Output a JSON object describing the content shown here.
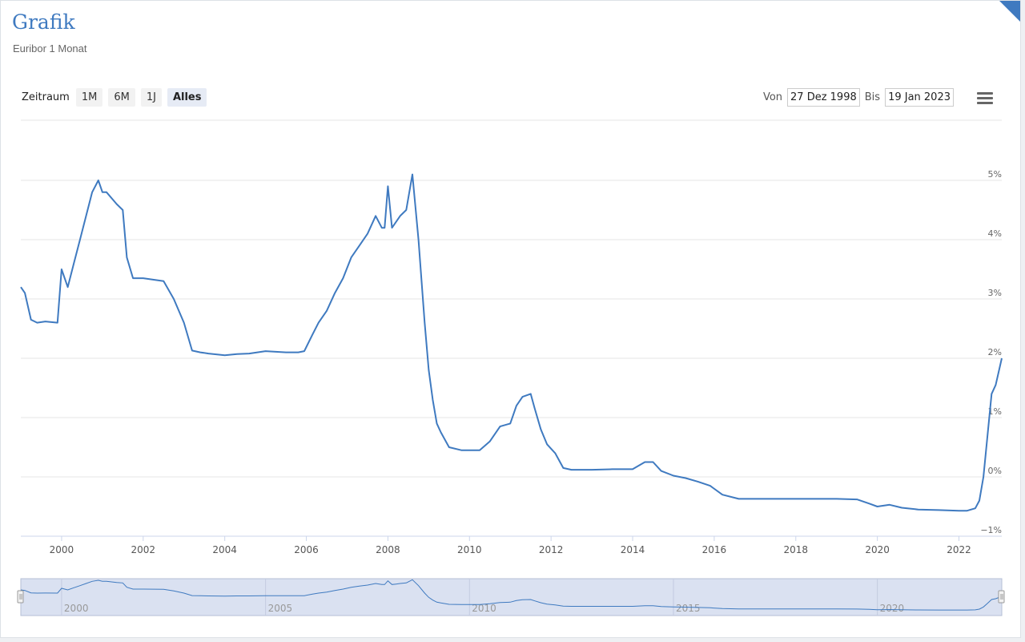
{
  "header": {
    "title": "Grafik",
    "subtitle": "Euribor 1 Monat"
  },
  "range_selector": {
    "label": "Zeitraum",
    "buttons": [
      {
        "label": "1M",
        "active": false
      },
      {
        "label": "6M",
        "active": false
      },
      {
        "label": "1J",
        "active": false
      },
      {
        "label": "Alles",
        "active": true
      }
    ]
  },
  "date_range": {
    "from_label": "Von",
    "from_value": "27 Dez 1998",
    "to_label": "Bis",
    "to_value": "19 Jan 2023"
  },
  "menu_icon": "hamburger-menu-icon",
  "colors": {
    "line": "#3f7ac0",
    "title": "#3f7ac0",
    "navigator_fill": "#d6deef",
    "grid": "#e6e6e6"
  },
  "chart_data": {
    "type": "line",
    "x": [
      1999.0,
      1999.1,
      1999.25,
      1999.4,
      1999.6,
      1999.9,
      2000.0,
      2000.15,
      2000.3,
      2000.45,
      2000.6,
      2000.75,
      2000.9,
      2001.0,
      2001.1,
      2001.35,
      2001.5,
      2001.6,
      2001.75,
      2002.0,
      2002.5,
      2002.75,
      2003.0,
      2003.2,
      2003.4,
      2003.6,
      2004.0,
      2004.3,
      2004.6,
      2005.0,
      2005.5,
      2005.8,
      2005.95,
      2006.15,
      2006.3,
      2006.5,
      2006.7,
      2006.9,
      2007.1,
      2007.3,
      2007.5,
      2007.7,
      2007.85,
      2007.92,
      2008.0,
      2008.1,
      2008.2,
      2008.3,
      2008.45,
      2008.6,
      2008.75,
      2008.9,
      2009.0,
      2009.1,
      2009.2,
      2009.3,
      2009.5,
      2009.8,
      2010.0,
      2010.25,
      2010.5,
      2010.75,
      2011.0,
      2011.15,
      2011.3,
      2011.5,
      2011.6,
      2011.75,
      2011.9,
      2012.1,
      2012.3,
      2012.5,
      2012.6,
      2012.8,
      2013.0,
      2013.5,
      2014.0,
      2014.3,
      2014.5,
      2014.7,
      2015.0,
      2015.3,
      2015.6,
      2015.9,
      2016.2,
      2016.6,
      2017.0,
      2018.0,
      2019.0,
      2019.5,
      2019.8,
      2020.0,
      2020.3,
      2020.6,
      2021.0,
      2021.5,
      2022.0,
      2022.2,
      2022.4,
      2022.5,
      2022.6,
      2022.7,
      2022.8,
      2022.9,
      2023.05
    ],
    "values": [
      3.2,
      3.1,
      2.65,
      2.6,
      2.62,
      2.6,
      3.5,
      3.2,
      3.6,
      4.0,
      4.4,
      4.8,
      5.0,
      4.8,
      4.8,
      4.6,
      4.5,
      3.7,
      3.35,
      3.35,
      3.3,
      3.0,
      2.6,
      2.13,
      2.1,
      2.08,
      2.05,
      2.07,
      2.08,
      2.12,
      2.1,
      2.1,
      2.12,
      2.4,
      2.6,
      2.8,
      3.1,
      3.35,
      3.7,
      3.9,
      4.1,
      4.4,
      4.2,
      4.2,
      4.9,
      4.2,
      4.3,
      4.4,
      4.5,
      5.1,
      4.0,
      2.6,
      1.8,
      1.3,
      0.9,
      0.75,
      0.5,
      0.45,
      0.45,
      0.45,
      0.6,
      0.85,
      0.9,
      1.2,
      1.35,
      1.4,
      1.15,
      0.8,
      0.55,
      0.4,
      0.15,
      0.12,
      0.12,
      0.12,
      0.12,
      0.13,
      0.13,
      0.25,
      0.25,
      0.1,
      0.02,
      -0.02,
      -0.08,
      -0.15,
      -0.3,
      -0.37,
      -0.37,
      -0.37,
      -0.37,
      -0.38,
      -0.45,
      -0.5,
      -0.47,
      -0.52,
      -0.55,
      -0.56,
      -0.57,
      -0.57,
      -0.53,
      -0.4,
      0.0,
      0.7,
      1.4,
      1.55,
      2.0
    ],
    "title": "",
    "xlabel": "",
    "ylabel": "",
    "x_ticks": [
      "2000",
      "2002",
      "2004",
      "2006",
      "2008",
      "2010",
      "2012",
      "2014",
      "2016",
      "2018",
      "2020",
      "2022"
    ],
    "y_ticks": [
      "−1%",
      "0%",
      "1%",
      "2%",
      "3%",
      "4%",
      "5%"
    ],
    "xlim": [
      1999.0,
      2023.05
    ],
    "ylim": [
      -1,
      6
    ],
    "grid": "horizontal",
    "navigator": {
      "x_ticks": [
        "2000",
        "2005",
        "2010",
        "2015",
        "2020"
      ],
      "xlim": [
        1999.0,
        2023.05
      ]
    }
  }
}
